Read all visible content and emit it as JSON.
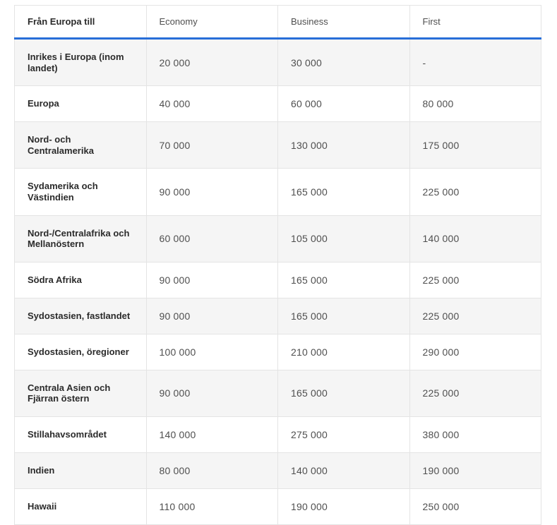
{
  "chart_data": {
    "type": "table",
    "columns": [
      "Från Europa till",
      "Economy",
      "Business",
      "First"
    ],
    "rows": [
      {
        "region": "Inrikes i Europa (inom landet)",
        "economy": "20 000",
        "business": "30 000",
        "first": "-"
      },
      {
        "region": "Europa",
        "economy": "40 000",
        "business": "60 000",
        "first": "80 000"
      },
      {
        "region": "Nord- och Centralamerika",
        "economy": "70 000",
        "business": "130 000",
        "first": "175 000"
      },
      {
        "region": "Sydamerika och Västindien",
        "economy": "90 000",
        "business": "165 000",
        "first": "225 000"
      },
      {
        "region": "Nord-/Centralafrika och Mellanöstern",
        "economy": "60 000",
        "business": "105 000",
        "first": "140 000"
      },
      {
        "region": "Södra Afrika",
        "economy": "90 000",
        "business": "165 000",
        "first": "225 000"
      },
      {
        "region": "Sydostasien, fastlandet",
        "economy": "90 000",
        "business": "165 000",
        "first": "225 000"
      },
      {
        "region": "Sydostasien, öregioner",
        "economy": "100 000",
        "business": "210 000",
        "first": "290 000"
      },
      {
        "region": "Centrala Asien och Fjärran östern",
        "economy": "90 000",
        "business": "165 000",
        "first": "225 000"
      },
      {
        "region": "Stillahavsområdet",
        "economy": "140 000",
        "business": "275 000",
        "first": "380 000"
      },
      {
        "region": "Indien",
        "economy": "80 000",
        "business": "140 000",
        "first": "190 000"
      },
      {
        "region": "Hawaii",
        "economy": "110 000",
        "business": "190 000",
        "first": "250 000"
      }
    ],
    "layout": {
      "striped": true,
      "first_stripe_row": 1,
      "header_underline": true
    }
  },
  "colors": {
    "header_underline": "#286ed8",
    "alt_row_bg": "#f5f5f5",
    "border": "#e4e4e4",
    "region_text": "#2b2b2b",
    "value_text": "#4f4f4f"
  }
}
